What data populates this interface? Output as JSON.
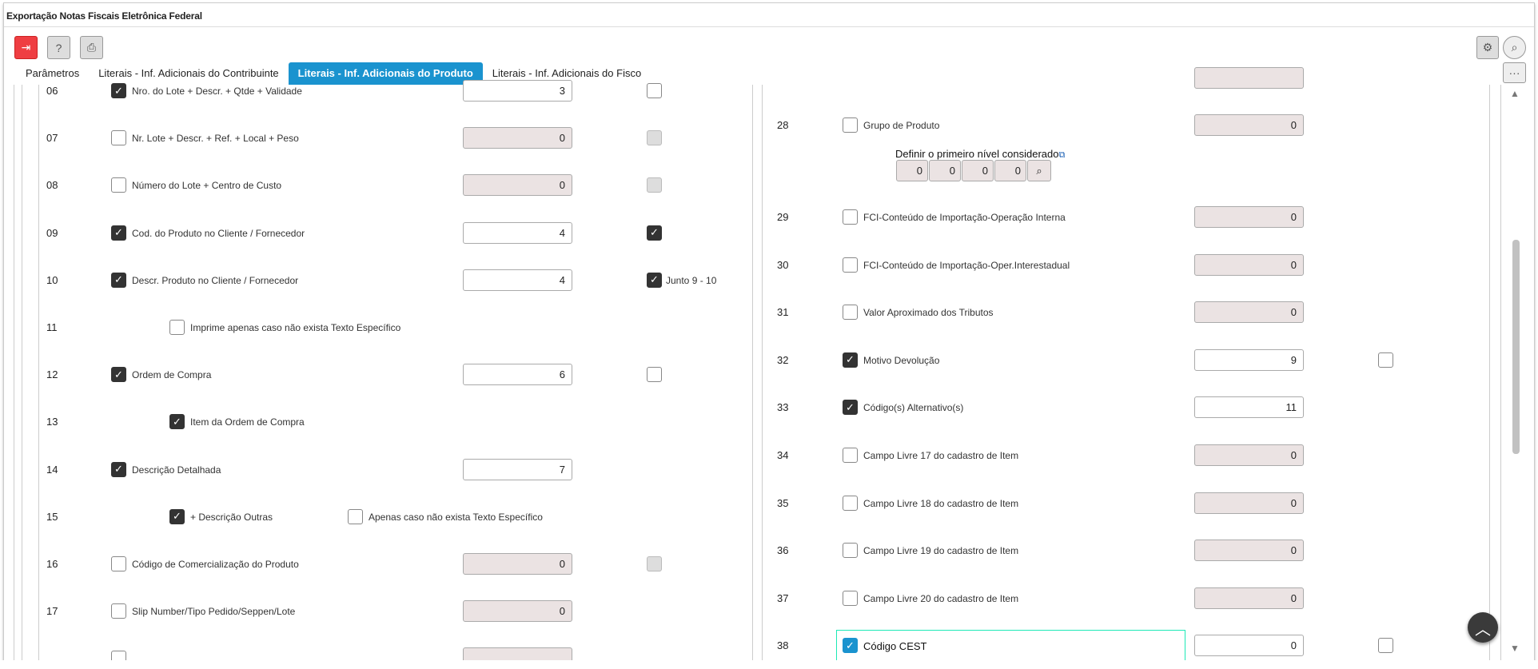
{
  "window": {
    "title": "Exportação Notas Fiscais Eletrônica Federal"
  },
  "toolbar": {
    "exit": "⇥",
    "help": "?",
    "print": "⎙",
    "settings": "⚙",
    "search": "⌕",
    "more": "···"
  },
  "tabs": [
    {
      "label": "Parâmetros",
      "active": false
    },
    {
      "label": "Literais - Inf. Adicionais do Contribuinte",
      "active": false
    },
    {
      "label": "Literais - Inf. Adicionais do Produto",
      "active": true
    },
    {
      "label": "Literais - Inf. Adicionais do Fisco",
      "active": false
    }
  ],
  "left_rows": [
    {
      "num": "06",
      "label": "Nro. do Lote + Descr. + Qtde + Validade",
      "checked": true,
      "value": "3",
      "enabled": true,
      "extra": {
        "checked": false,
        "enabled": true
      }
    },
    {
      "num": "07",
      "label": "Nr. Lote + Descr. + Ref. + Local + Peso",
      "checked": false,
      "value": "0",
      "enabled": false,
      "extra": {
        "checked": false,
        "enabled": false
      }
    },
    {
      "num": "08",
      "label": "Número do Lote + Centro de Custo",
      "checked": false,
      "value": "0",
      "enabled": false,
      "extra": {
        "checked": false,
        "enabled": false
      }
    },
    {
      "num": "09",
      "label": "Cod. do Produto no Cliente / Fornecedor",
      "checked": true,
      "value": "4",
      "enabled": true,
      "extra": {
        "checked": true,
        "enabled": true
      }
    },
    {
      "num": "10",
      "label": "Descr. Produto no Cliente / Fornecedor",
      "checked": true,
      "value": "4",
      "enabled": true,
      "extra": {
        "checked": true,
        "enabled": true,
        "label": "Junto 9 - 10"
      }
    },
    {
      "num": "11",
      "sub": [
        {
          "label": "Imprime apenas caso não exista Texto Específico",
          "checked": false
        }
      ]
    },
    {
      "num": "12",
      "label": "Ordem de Compra",
      "checked": true,
      "value": "6",
      "enabled": true,
      "extra": {
        "checked": false,
        "enabled": true
      }
    },
    {
      "num": "13",
      "sub": [
        {
          "label": "Item da Ordem de Compra",
          "checked": true
        }
      ]
    },
    {
      "num": "14",
      "label": "Descrição Detalhada",
      "checked": true,
      "value": "7",
      "enabled": true
    },
    {
      "num": "15",
      "sub": [
        {
          "label": "+ Descrição Outras",
          "checked": true
        },
        {
          "label": "Apenas caso não exista Texto Específico",
          "checked": false
        }
      ]
    },
    {
      "num": "16",
      "label": "Código de Comercialização do Produto",
      "checked": false,
      "value": "0",
      "enabled": false,
      "extra": {
        "checked": false,
        "enabled": false
      }
    },
    {
      "num": "17",
      "label": "Slip Number/Tipo Pedido/Seppen/Lote",
      "checked": false,
      "value": "0",
      "enabled": false
    },
    {
      "num": "",
      "label": "",
      "checked": false,
      "value": "",
      "enabled": false
    }
  ],
  "right_rows": [
    {
      "num": "28",
      "label": "Grupo de Produto",
      "checked": false,
      "value": "0",
      "enabled": false
    },
    {
      "num": "29",
      "label": "FCI-Conteúdo de Importação-Operação Interna",
      "checked": false,
      "value": "0",
      "enabled": false
    },
    {
      "num": "30",
      "label": "FCI-Conteúdo de Importação-Oper.Interestadual",
      "checked": false,
      "value": "0",
      "enabled": false
    },
    {
      "num": "31",
      "label": "Valor Aproximado dos Tributos",
      "checked": false,
      "value": "0",
      "enabled": false
    },
    {
      "num": "32",
      "label": "Motivo Devolução",
      "checked": true,
      "value": "9",
      "enabled": true,
      "extra": {
        "checked": false,
        "enabled": true
      }
    },
    {
      "num": "33",
      "label": "Código(s) Alternativo(s)",
      "checked": true,
      "value": "11",
      "enabled": true
    },
    {
      "num": "34",
      "label": "Campo Livre 17 do cadastro de Item",
      "checked": false,
      "value": "0",
      "enabled": false
    },
    {
      "num": "35",
      "label": "Campo Livre 18 do cadastro de Item",
      "checked": false,
      "value": "0",
      "enabled": false
    },
    {
      "num": "36",
      "label": "Campo Livre 19 do cadastro de Item",
      "checked": false,
      "value": "0",
      "enabled": false
    },
    {
      "num": "37",
      "label": "Campo Livre 20 do cadastro de Item",
      "checked": false,
      "value": "0",
      "enabled": false
    },
    {
      "num": "38",
      "label": "Código CEST",
      "checked": true,
      "focused": true,
      "value": "0",
      "enabled": true,
      "extra": {
        "checked": false,
        "enabled": true
      }
    }
  ],
  "first_level": {
    "label": "Definir o primeiro nível considerado",
    "values": [
      "0",
      "0",
      "0",
      "0"
    ],
    "search": "⌕"
  },
  "colors": {
    "accent": "#1a93cf",
    "exit": "#ef3e42",
    "focus": "#1de9b6"
  }
}
